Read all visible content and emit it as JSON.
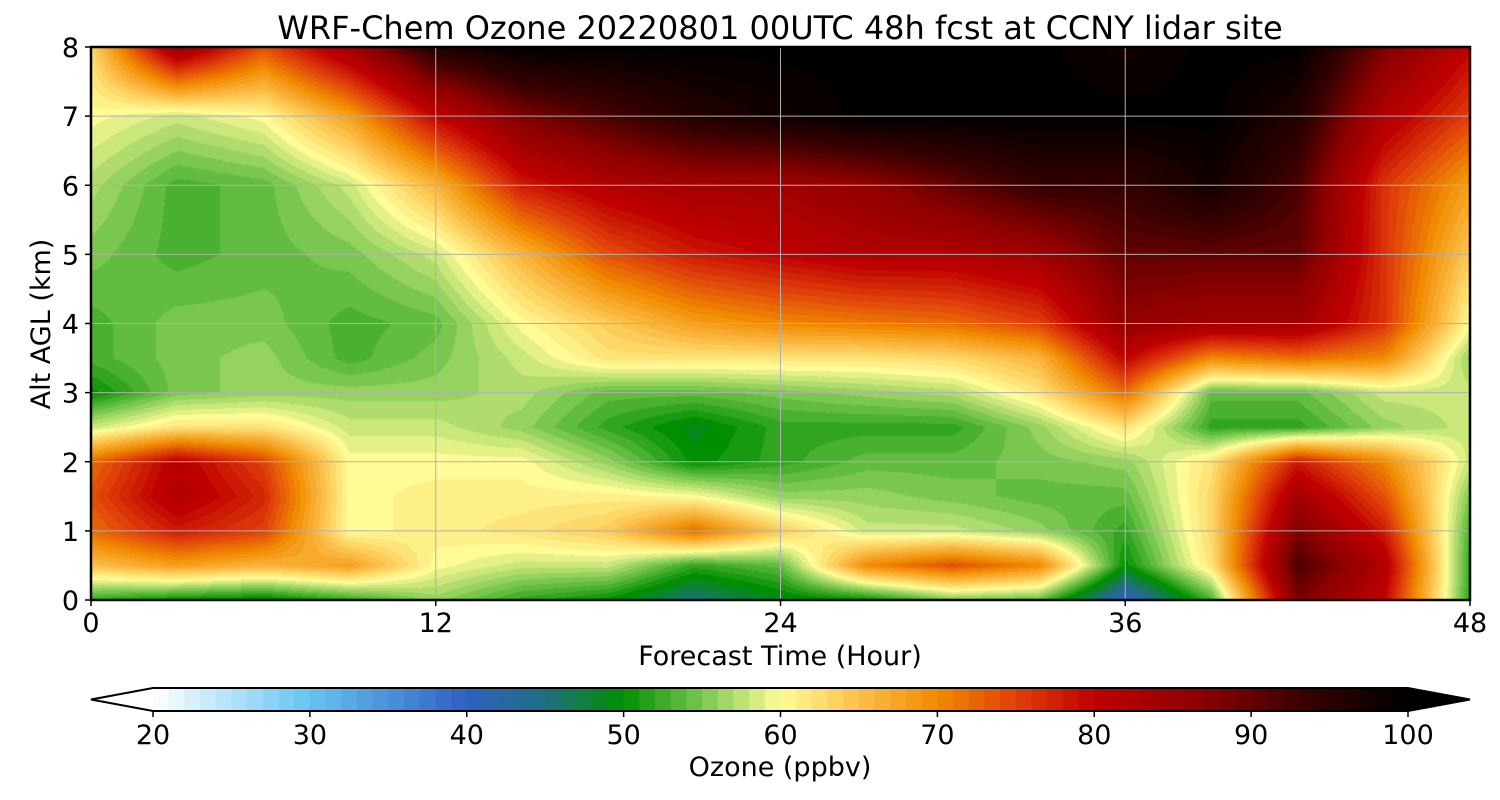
{
  "chart_data": {
    "type": "heatmap",
    "title": "WRF-Chem Ozone  20220801 00UTC 48h fcst at CCNY lidar site",
    "xlabel": "Forecast Time (Hour)",
    "ylabel": "Alt AGL (km)",
    "xlim": [
      0,
      48
    ],
    "ylim": [
      0,
      8
    ],
    "xticks": [
      "0",
      "12",
      "24",
      "36",
      "48"
    ],
    "yticks": [
      "0",
      "1",
      "2",
      "3",
      "4",
      "5",
      "6",
      "7",
      "8"
    ],
    "grid": true,
    "x": [
      0,
      3,
      6,
      9,
      12,
      15,
      18,
      21,
      24,
      27,
      30,
      33,
      36,
      39,
      42,
      45,
      48
    ],
    "y": [
      0,
      0.5,
      1,
      1.5,
      2,
      2.5,
      3,
      3.5,
      4,
      5,
      6,
      7,
      8
    ],
    "z": [
      [
        52,
        50,
        49,
        52,
        56,
        52,
        50,
        45,
        49,
        50,
        55,
        54,
        40,
        53,
        88,
        80,
        52
      ],
      [
        65,
        68,
        66,
        68,
        60,
        58,
        58,
        52,
        54,
        70,
        74,
        70,
        50,
        62,
        92,
        82,
        52
      ],
      [
        72,
        78,
        75,
        60,
        61,
        62,
        64,
        72,
        64,
        58,
        58,
        56,
        52,
        63,
        88,
        78,
        53
      ],
      [
        74,
        82,
        77,
        60,
        61,
        61,
        61,
        60,
        56,
        56,
        55,
        54,
        54,
        63,
        84,
        74,
        55
      ],
      [
        72,
        81,
        75,
        60,
        60,
        60,
        56,
        50,
        52,
        54,
        54,
        55,
        56,
        62,
        78,
        70,
        58
      ],
      [
        58,
        62,
        62,
        58,
        58,
        56,
        52,
        49,
        52,
        52,
        52,
        56,
        62,
        52,
        52,
        56,
        58
      ],
      [
        50,
        55,
        56,
        56,
        56,
        57,
        54,
        54,
        55,
        56,
        57,
        62,
        72,
        54,
        54,
        58,
        58
      ],
      [
        53,
        55,
        56,
        53,
        55,
        58,
        62,
        62,
        62,
        62,
        63,
        66,
        80,
        70,
        72,
        70,
        56
      ],
      [
        53,
        55,
        55,
        53,
        54,
        60,
        64,
        68,
        70,
        71,
        72,
        75,
        86,
        84,
        84,
        76,
        60
      ],
      [
        55,
        53,
        54,
        55,
        58,
        66,
        74,
        78,
        80,
        82,
        82,
        84,
        90,
        90,
        90,
        76,
        64
      ],
      [
        57,
        53,
        54,
        58,
        66,
        78,
        82,
        84,
        84,
        86,
        90,
        94,
        94,
        98,
        92,
        76,
        68
      ],
      [
        60,
        58,
        60,
        68,
        80,
        88,
        92,
        96,
        98,
        100,
        100,
        100,
        100,
        100,
        96,
        82,
        75
      ],
      [
        63,
        85,
        74,
        84,
        96,
        100,
        100,
        100,
        100,
        100,
        100,
        100,
        98,
        100,
        100,
        88,
        80
      ]
    ],
    "colorbar": {
      "label": "Ozone  (ppbv)",
      "min": 20,
      "max": 100,
      "extend": "both",
      "ticks": [
        "20",
        "30",
        "40",
        "50",
        "60",
        "70",
        "80",
        "90",
        "100"
      ],
      "colormap": [
        [
          20,
          "#ffffff"
        ],
        [
          30,
          "#66c3f2"
        ],
        [
          40,
          "#2f60c0"
        ],
        [
          45,
          "#1f6f80"
        ],
        [
          50,
          "#008f00"
        ],
        [
          55,
          "#7ac74f"
        ],
        [
          60,
          "#fffc98"
        ],
        [
          65,
          "#fbc04a"
        ],
        [
          70,
          "#f08a00"
        ],
        [
          75,
          "#e0400a"
        ],
        [
          80,
          "#c00000"
        ],
        [
          87,
          "#8a0000"
        ],
        [
          93,
          "#3c0000"
        ],
        [
          100,
          "#000000"
        ]
      ]
    }
  }
}
